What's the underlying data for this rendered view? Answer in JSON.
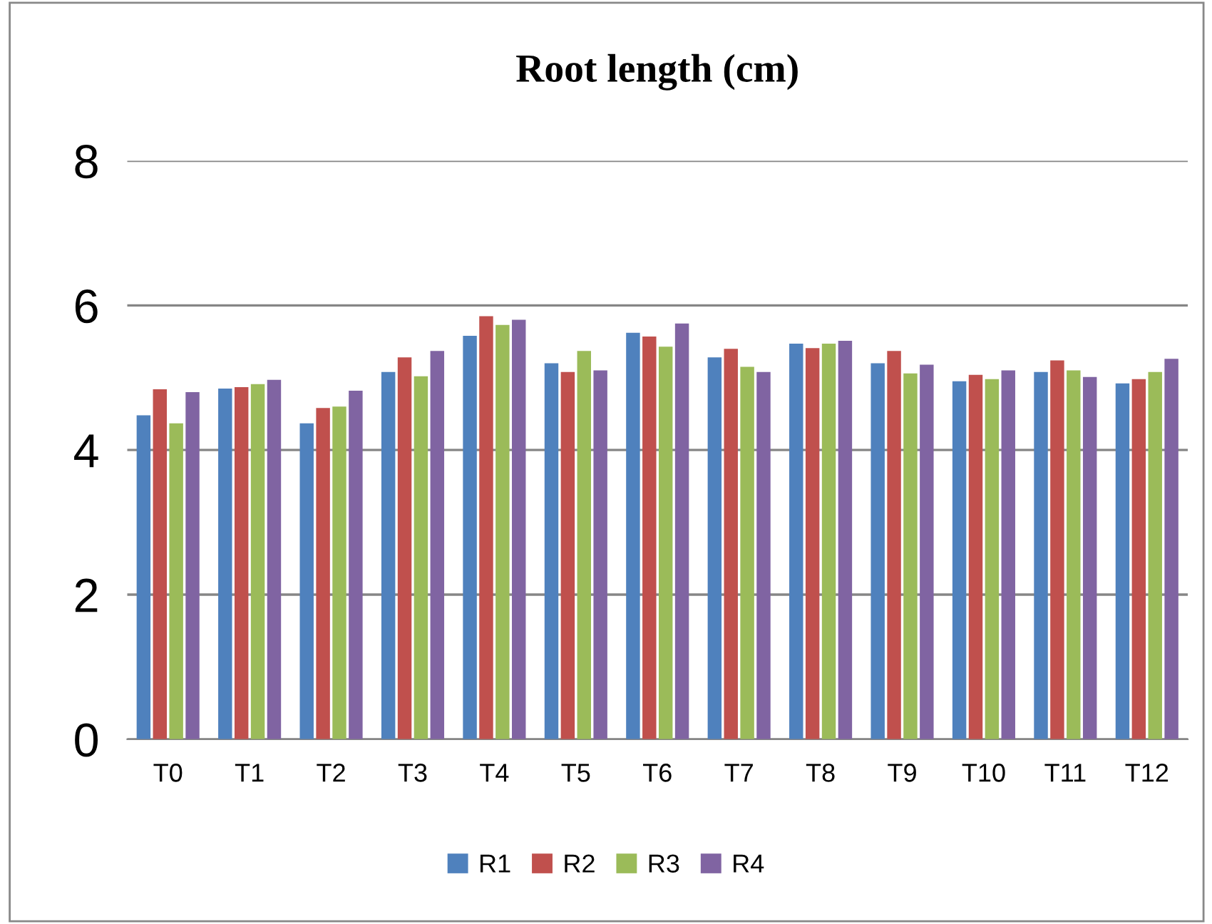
{
  "chart_data": {
    "type": "bar",
    "title": "Root length (cm)",
    "categories": [
      "T0",
      "T1",
      "T2",
      "T3",
      "T4",
      "T5",
      "T6",
      "T7",
      "T8",
      "T9",
      "T10",
      "T11",
      "T12"
    ],
    "series": [
      {
        "name": "R1",
        "color": "#4f81bd",
        "values": [
          4.48,
          4.85,
          4.37,
          5.08,
          5.58,
          5.2,
          5.62,
          5.28,
          5.47,
          5.2,
          4.95,
          5.08,
          4.92
        ]
      },
      {
        "name": "R2",
        "color": "#c0504d",
        "values": [
          4.84,
          4.87,
          4.58,
          5.28,
          5.85,
          5.08,
          5.57,
          5.4,
          5.41,
          5.37,
          5.04,
          5.24,
          4.98
        ]
      },
      {
        "name": "R3",
        "color": "#9bbb59",
        "values": [
          4.37,
          4.91,
          4.6,
          5.02,
          5.73,
          5.37,
          5.43,
          5.15,
          5.47,
          5.06,
          4.98,
          5.1,
          5.08
        ]
      },
      {
        "name": "R4",
        "color": "#8064a2",
        "values": [
          4.8,
          4.97,
          4.82,
          5.37,
          5.8,
          5.1,
          5.75,
          5.08,
          5.51,
          5.18,
          5.1,
          5.01,
          5.26
        ]
      }
    ],
    "ylim": [
      0,
      8
    ],
    "yticks": [
      0,
      2,
      4,
      6,
      8
    ],
    "grid": "y",
    "legend": "bottom"
  }
}
